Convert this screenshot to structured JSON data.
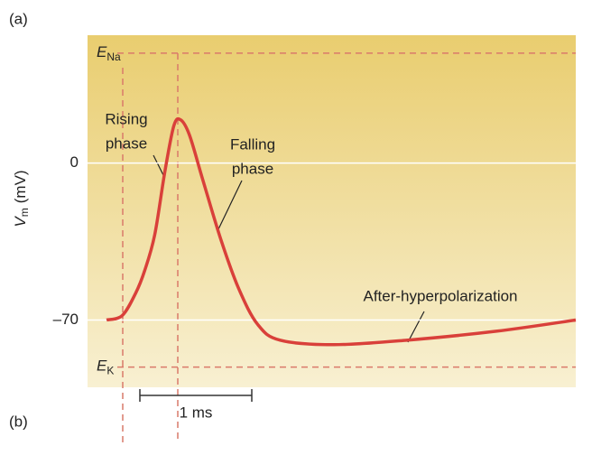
{
  "chart_data": {
    "type": "line",
    "panel_labels": [
      "(a)",
      "(b)"
    ],
    "y_label": {
      "main": "V",
      "subscript": "m",
      "unit": "(mV)"
    },
    "x": [
      0.17,
      0.31,
      0.43,
      0.51,
      0.6,
      0.69,
      0.77,
      0.83,
      0.91,
      1.03,
      1.19,
      1.35,
      1.52,
      1.72,
      2.2,
      2.85,
      3.65,
      4.36
    ],
    "series": [
      {
        "color": "#d9403a",
        "values": [
          -70,
          -68,
          -58,
          -48,
          -32,
          -4,
          16.5,
          19.3,
          12.5,
          -7.6,
          -34,
          -56,
          -72,
          -79,
          -81,
          -79,
          -75,
          -70
        ]
      }
    ],
    "xlim": [
      0,
      4.36
    ],
    "ylim": [
      -100,
      57
    ],
    "yticks": [
      0,
      {
        "value": -70,
        "label": "–70"
      }
    ],
    "reference_lines": [
      {
        "label": "E",
        "subscript": "Na",
        "value": 49
      },
      {
        "label": "E",
        "subscript": "K",
        "value": -91
      }
    ],
    "annotations": [
      {
        "lines": [
          "Rising",
          "phase"
        ]
      },
      {
        "lines": [
          "Falling",
          "phase"
        ]
      },
      {
        "lines": [
          "After-hyperpolarization"
        ]
      }
    ],
    "scale_bar": "1 ms"
  }
}
